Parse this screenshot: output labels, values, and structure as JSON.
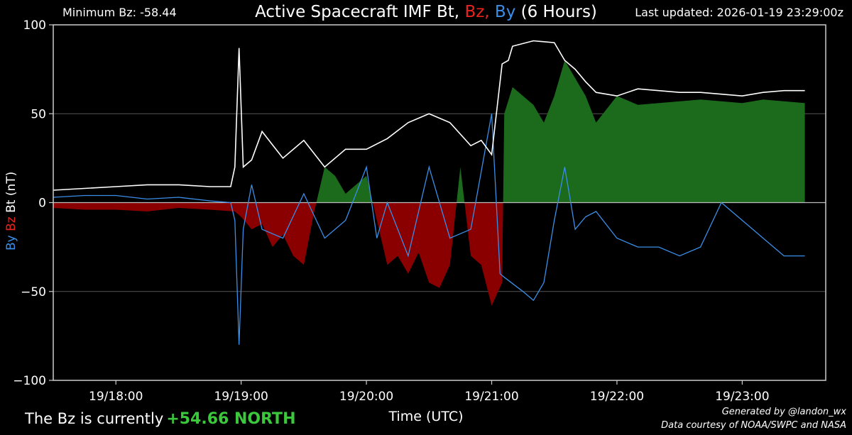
{
  "header": {
    "min_bz": "Minimum Bz: -58.44",
    "updated": "Last updated: 2026-01-19 23:29:00z",
    "title_parts": [
      {
        "text": "Active Spacecraft IMF Bt, ",
        "color": "#ffffff"
      },
      {
        "text": "Bz, ",
        "color": "#e8231e"
      },
      {
        "text": "By",
        "color": "#3a8ee8"
      },
      {
        "text": " (6 Hours)",
        "color": "#ffffff"
      }
    ]
  },
  "footer": {
    "bz_prefix": "The Bz is currently",
    "bz_value": "+54.66 NORTH",
    "credit_line1": "Generated by @landon_wx",
    "credit_line2": "Data courtesy of NOAA/SWPC and NASA"
  },
  "chart_data": {
    "type": "area",
    "title": "Active Spacecraft IMF Bt, Bz, By (6 Hours)",
    "xlabel": "Time (UTC)",
    "ylabel_parts": [
      {
        "text": "By",
        "color": "#3a8ee8"
      },
      {
        "text": "Bz",
        "color": "#e8231e"
      },
      {
        "text": "Bt (nT)",
        "color": "#ffffff"
      }
    ],
    "x_range": [
      "17:30",
      "23:40"
    ],
    "ylim": [
      -100,
      100
    ],
    "y_ticks": [
      100,
      50,
      0,
      -50,
      -100
    ],
    "y_tick_labels": [
      "100",
      "50",
      "0",
      "−50",
      "−100"
    ],
    "x_ticks": [
      "18:00",
      "19:00",
      "20:00",
      "21:00",
      "22:00",
      "23:00"
    ],
    "x_tick_labels": [
      "19/18:00",
      "19/19:00",
      "19/20:00",
      "19/21:00",
      "19/22:00",
      "19/23:00"
    ],
    "grid": true,
    "colors": {
      "bt": "#ffffff",
      "by": "#3a8ee8",
      "bz_positive": "#1c6a1c",
      "bz_negative": "#8a0000",
      "grid": "#555555",
      "background": "#000000"
    },
    "series": [
      {
        "name": "Bt",
        "x": [
          "17:30",
          "17:45",
          "18:00",
          "18:15",
          "18:30",
          "18:45",
          "18:55",
          "18:57",
          "18:59",
          "19:01",
          "19:05",
          "19:10",
          "19:20",
          "19:30",
          "19:40",
          "19:50",
          "20:00",
          "20:10",
          "20:20",
          "20:30",
          "20:40",
          "20:50",
          "20:55",
          "21:00",
          "21:05",
          "21:08",
          "21:10",
          "21:20",
          "21:30",
          "21:35",
          "21:40",
          "21:45",
          "21:50",
          "22:00",
          "22:10",
          "22:20",
          "22:30",
          "22:40",
          "22:50",
          "23:00",
          "23:10",
          "23:20",
          "23:30"
        ],
        "values": [
          7,
          8,
          9,
          10,
          10,
          9,
          9,
          20,
          87,
          20,
          24,
          40,
          25,
          35,
          20,
          30,
          30,
          36,
          45,
          50,
          45,
          32,
          35,
          27,
          78,
          80,
          88,
          91,
          90,
          80,
          75,
          68,
          62,
          60,
          64,
          63,
          62,
          62,
          61,
          60,
          62,
          63,
          63
        ]
      },
      {
        "name": "Bz",
        "x": [
          "17:30",
          "17:45",
          "18:00",
          "18:15",
          "18:30",
          "18:45",
          "18:57",
          "19:00",
          "19:05",
          "19:10",
          "19:15",
          "19:20",
          "19:25",
          "19:30",
          "19:35",
          "19:40",
          "19:45",
          "19:50",
          "19:55",
          "20:00",
          "20:05",
          "20:10",
          "20:15",
          "20:20",
          "20:25",
          "20:30",
          "20:35",
          "20:40",
          "20:45",
          "20:50",
          "20:55",
          "21:00",
          "21:05",
          "21:06",
          "21:10",
          "21:20",
          "21:25",
          "21:30",
          "21:35",
          "21:40",
          "21:45",
          "21:50",
          "22:00",
          "22:10",
          "22:20",
          "22:30",
          "22:40",
          "22:50",
          "23:00",
          "23:10",
          "23:20",
          "23:30"
        ],
        "values": [
          -3,
          -4,
          -4,
          -5,
          -3,
          -4,
          -5,
          -8,
          -15,
          -12,
          -25,
          -18,
          -30,
          -35,
          -5,
          20,
          15,
          5,
          10,
          15,
          -10,
          -35,
          -30,
          -40,
          -28,
          -45,
          -48,
          -35,
          20,
          -30,
          -35,
          -58,
          -45,
          50,
          65,
          55,
          45,
          60,
          80,
          70,
          60,
          45,
          60,
          55,
          56,
          57,
          58,
          57,
          56,
          58,
          57,
          56
        ]
      },
      {
        "name": "By",
        "x": [
          "17:30",
          "17:45",
          "18:00",
          "18:15",
          "18:30",
          "18:45",
          "18:55",
          "18:57",
          "18:59",
          "19:01",
          "19:05",
          "19:10",
          "19:20",
          "19:30",
          "19:40",
          "19:50",
          "20:00",
          "20:05",
          "20:10",
          "20:20",
          "20:30",
          "20:40",
          "20:50",
          "21:00",
          "21:04",
          "21:06",
          "21:15",
          "21:20",
          "21:25",
          "21:30",
          "21:35",
          "21:40",
          "21:45",
          "21:50",
          "22:00",
          "22:10",
          "22:20",
          "22:30",
          "22:40",
          "22:50",
          "23:00",
          "23:10",
          "23:20",
          "23:30"
        ],
        "values": [
          3,
          4,
          4,
          2,
          3,
          1,
          0,
          -10,
          -80,
          -15,
          10,
          -15,
          -20,
          5,
          -20,
          -10,
          20,
          -20,
          0,
          -30,
          20,
          -20,
          -15,
          50,
          -40,
          -42,
          -50,
          -55,
          -45,
          -10,
          20,
          -15,
          -8,
          -5,
          -20,
          -25,
          -25,
          -30,
          -25,
          0,
          -10,
          -20,
          -30,
          -30
        ]
      }
    ]
  }
}
